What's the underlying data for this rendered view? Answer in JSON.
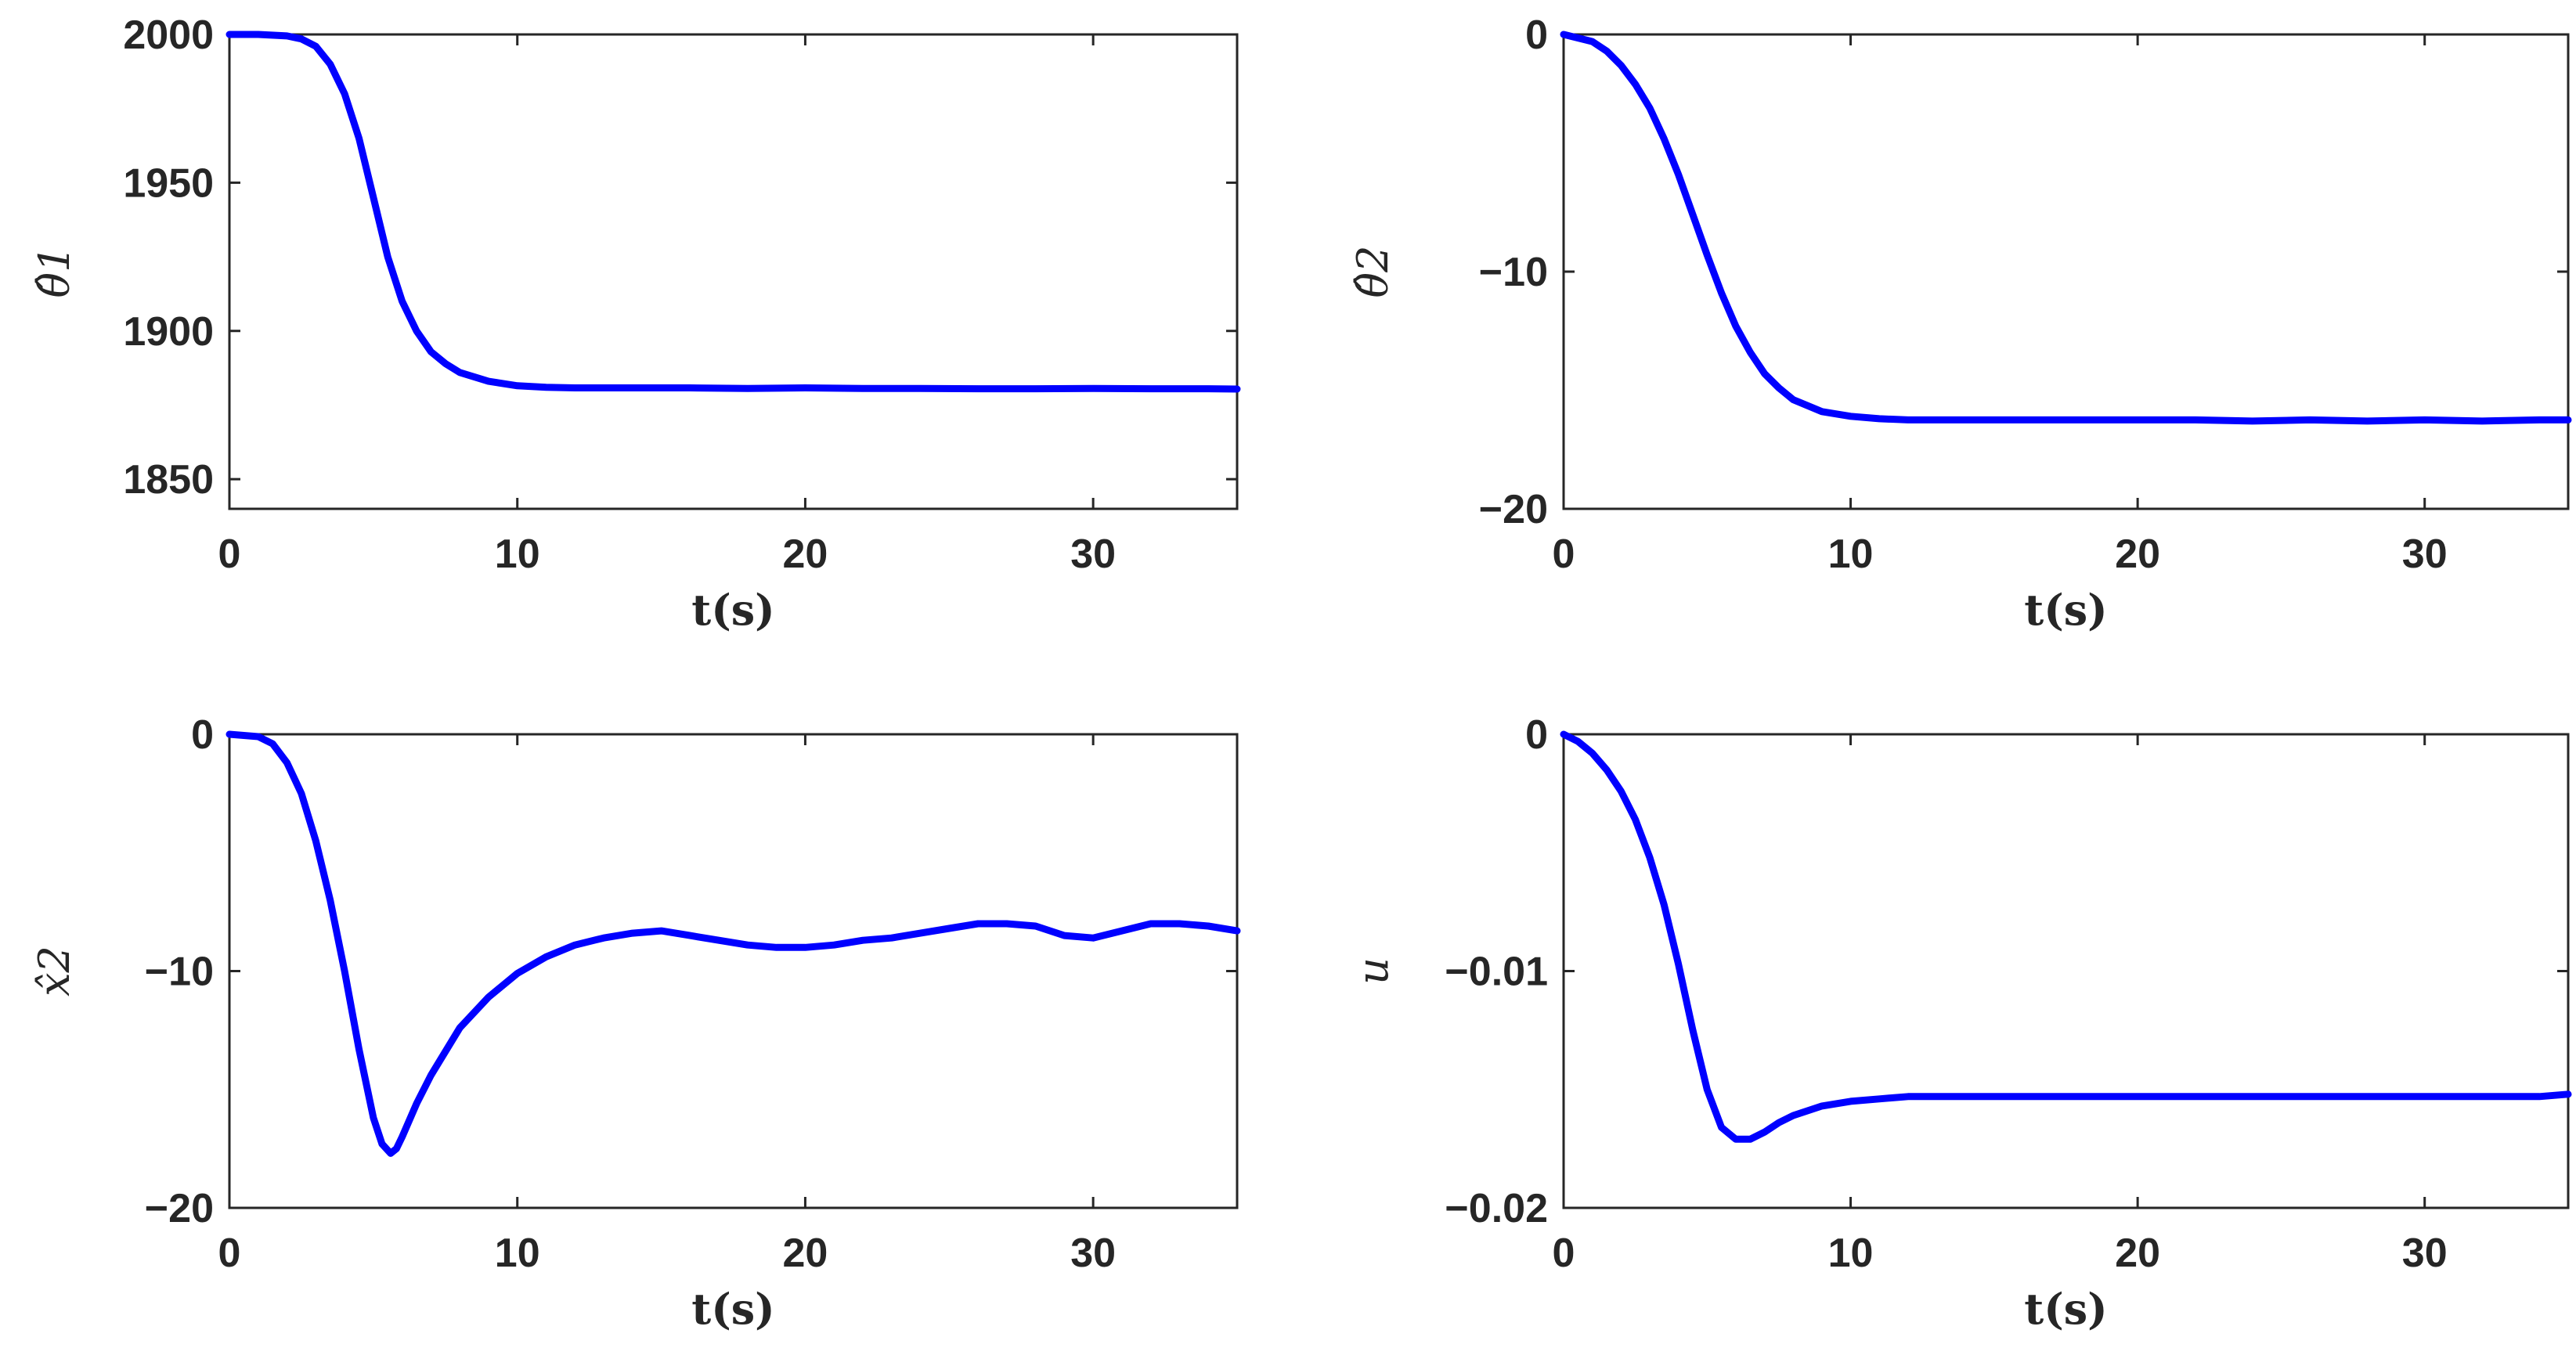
{
  "line_color": "#0000ff",
  "chart_data": [
    {
      "type": "line",
      "xlabel": "t(s)",
      "ylabel": "θ̂1",
      "xlim": [
        0,
        35
      ],
      "ylim": [
        1840,
        2000
      ],
      "xticks": [
        "0",
        "10",
        "20",
        "30"
      ],
      "yticks": [
        "1850",
        "1900",
        "1950",
        "2000"
      ],
      "x": [
        0,
        1,
        2,
        2.5,
        3,
        3.5,
        4,
        4.5,
        5,
        5.5,
        6,
        6.5,
        7,
        7.5,
        8,
        9,
        10,
        11,
        12,
        14,
        16,
        18,
        20,
        22,
        24,
        26,
        28,
        30,
        32,
        34,
        35
      ],
      "values": [
        2000,
        2000,
        1999.5,
        1998.5,
        1996,
        1990,
        1980,
        1965,
        1945,
        1925,
        1910,
        1900,
        1893,
        1889,
        1886,
        1883,
        1881.5,
        1881,
        1880.8,
        1880.8,
        1880.8,
        1880.6,
        1880.8,
        1880.6,
        1880.6,
        1880.5,
        1880.5,
        1880.6,
        1880.5,
        1880.5,
        1880.4
      ]
    },
    {
      "type": "line",
      "xlabel": "t(s)",
      "ylabel": "θ̂2",
      "xlim": [
        0,
        35
      ],
      "ylim": [
        -20,
        0
      ],
      "xticks": [
        "0",
        "10",
        "20",
        "30"
      ],
      "yticks": [
        "−20",
        "−10",
        "0"
      ],
      "x": [
        0,
        1,
        1.5,
        2,
        2.5,
        3,
        3.5,
        4,
        4.5,
        5,
        5.5,
        6,
        6.5,
        7,
        7.5,
        8,
        9,
        10,
        11,
        12,
        14,
        16,
        18,
        20,
        22,
        24,
        26,
        28,
        30,
        32,
        34,
        35
      ],
      "values": [
        0,
        -0.3,
        -0.7,
        -1.3,
        -2.1,
        -3.1,
        -4.4,
        -5.9,
        -7.6,
        -9.3,
        -10.9,
        -12.3,
        -13.4,
        -14.3,
        -14.9,
        -15.4,
        -15.9,
        -16.1,
        -16.2,
        -16.25,
        -16.25,
        -16.25,
        -16.25,
        -16.25,
        -16.25,
        -16.3,
        -16.25,
        -16.3,
        -16.25,
        -16.3,
        -16.25,
        -16.25
      ]
    },
    {
      "type": "line",
      "xlabel": "t(s)",
      "ylabel": "x̂2",
      "xlim": [
        0,
        35
      ],
      "ylim": [
        -20,
        0
      ],
      "xticks": [
        "0",
        "10",
        "20",
        "30"
      ],
      "yticks": [
        "−20",
        "−10",
        "0"
      ],
      "x": [
        0,
        1,
        1.5,
        2,
        2.5,
        3,
        3.5,
        4,
        4.5,
        5,
        5.3,
        5.6,
        5.8,
        6,
        6.5,
        7,
        8,
        9,
        10,
        11,
        12,
        13,
        14,
        15,
        16,
        17,
        18,
        19,
        20,
        21,
        22,
        23,
        24,
        25,
        26,
        27,
        28,
        29,
        30,
        31,
        32,
        33,
        34,
        35
      ],
      "values": [
        0,
        -0.1,
        -0.4,
        -1.2,
        -2.5,
        -4.5,
        -7,
        -10,
        -13.3,
        -16.2,
        -17.3,
        -17.7,
        -17.5,
        -17,
        -15.6,
        -14.4,
        -12.4,
        -11.1,
        -10.1,
        -9.4,
        -8.9,
        -8.6,
        -8.4,
        -8.3,
        -8.5,
        -8.7,
        -8.9,
        -9.0,
        -9.0,
        -8.9,
        -8.7,
        -8.6,
        -8.4,
        -8.2,
        -8.0,
        -8.0,
        -8.1,
        -8.5,
        -8.6,
        -8.3,
        -8.0,
        -8.0,
        -8.1,
        -8.3
      ]
    },
    {
      "type": "line",
      "xlabel": "t(s)",
      "ylabel": "u",
      "xlim": [
        0,
        35
      ],
      "ylim": [
        -0.02,
        0
      ],
      "xticks": [
        "0",
        "10",
        "20",
        "30"
      ],
      "yticks": [
        "−0.02",
        "−0.01",
        "0"
      ],
      "x": [
        0,
        0.5,
        1,
        1.5,
        2,
        2.5,
        3,
        3.5,
        4,
        4.5,
        5,
        5.5,
        6,
        6.5,
        7,
        7.5,
        8,
        9,
        10,
        11,
        12,
        14,
        16,
        18,
        20,
        22,
        24,
        26,
        28,
        30,
        32,
        34,
        35
      ],
      "values": [
        0,
        -0.0003,
        -0.0008,
        -0.0015,
        -0.0024,
        -0.0036,
        -0.0052,
        -0.0072,
        -0.0097,
        -0.0125,
        -0.015,
        -0.0166,
        -0.0171,
        -0.0171,
        -0.0168,
        -0.0164,
        -0.0161,
        -0.0157,
        -0.0155,
        -0.0154,
        -0.0153,
        -0.0153,
        -0.0153,
        -0.0153,
        -0.0153,
        -0.0153,
        -0.0153,
        -0.0153,
        -0.0153,
        -0.0153,
        -0.0153,
        -0.0153,
        -0.0152
      ]
    }
  ]
}
